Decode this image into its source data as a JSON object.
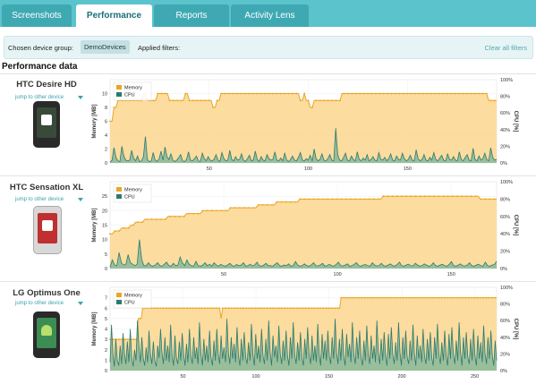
{
  "tabs": [
    {
      "label": "Screenshots",
      "active": false
    },
    {
      "label": "Performance",
      "active": true
    },
    {
      "label": "Reports",
      "active": false
    },
    {
      "label": "Activity Lens",
      "active": false
    }
  ],
  "filters": {
    "device_group_label": "Chosen device group:",
    "device_group_value": "DemoDevices",
    "applied_label": "Applied filters:",
    "clear_label": "Clear all filters"
  },
  "heading": "Performance data",
  "jump_label": "jump to other device",
  "colors": {
    "memory_fill": "#fbd68e",
    "memory_line": "#e9a524",
    "cpu_fill": "#7fb69a",
    "cpu_line": "#2c7a6e",
    "accent": "#5bc3cc"
  },
  "devices": [
    {
      "name": "HTC Desire HD",
      "phone_color": "#2a2a2a",
      "screen_color": "#3a4a3a",
      "screen_icon": "clock-widget"
    },
    {
      "name": "HTC Sensation XL",
      "phone_color": "white",
      "screen_color": "#c03030",
      "screen_icon": "clock-widget"
    },
    {
      "name": "LG Optimus One",
      "phone_color": "#2a2a2a",
      "screen_color": "#3b8d54",
      "screen_icon": "android-logo"
    }
  ],
  "chart_data": [
    {
      "type": "area",
      "legend": [
        "Memory",
        "CPU"
      ],
      "ylabel_left": "Memory [MB]",
      "ylabel_right": "CPU [%]",
      "ylim_left": [
        0,
        12
      ],
      "ylim_right": [
        0,
        100
      ],
      "yticks_left": [
        0,
        2,
        4,
        6,
        8,
        10
      ],
      "yticks_right": [
        "0%",
        "20%",
        "40%",
        "60%",
        "80%",
        "100%"
      ],
      "xlim": [
        0,
        195
      ],
      "xticks": [
        50,
        100,
        150
      ],
      "grid": true,
      "legend_position": "top-left",
      "memory": [
        6,
        6,
        8,
        8,
        9,
        9,
        9,
        9,
        9,
        9,
        9,
        9,
        9,
        9,
        9,
        9,
        9,
        10,
        10,
        9,
        9,
        9,
        9,
        9,
        10,
        10,
        10,
        10,
        10,
        10,
        9,
        9,
        9,
        9,
        9,
        9,
        9,
        9,
        10,
        10,
        9,
        9,
        9,
        9,
        9,
        9,
        9,
        9,
        9,
        9,
        9,
        9,
        8,
        8,
        9,
        9,
        10,
        10,
        10,
        10,
        10,
        10,
        10,
        10,
        10,
        10,
        10,
        10,
        10,
        10,
        10,
        10,
        10,
        10,
        10,
        10,
        10,
        10,
        10,
        10,
        10,
        10,
        10,
        10,
        10,
        10,
        10,
        10,
        10,
        10,
        10,
        10,
        10,
        10,
        10,
        10,
        9,
        9,
        10,
        9,
        9,
        8,
        8,
        9,
        9,
        9,
        9,
        9,
        9,
        9,
        9,
        9,
        9,
        9,
        9,
        9,
        9,
        10,
        10,
        10,
        10,
        10,
        10,
        10,
        10,
        10,
        10,
        10,
        10,
        10,
        10,
        10,
        10,
        10,
        10,
        10,
        10,
        10,
        10,
        10,
        10,
        10,
        10,
        10,
        10,
        10,
        10,
        10,
        10,
        10,
        10,
        10,
        10,
        10,
        10,
        10,
        10,
        10,
        10,
        10,
        10,
        10,
        10,
        10,
        10,
        10,
        10,
        10,
        10,
        10,
        10,
        10,
        10,
        10,
        10,
        10,
        10,
        10,
        10,
        10,
        10,
        10,
        10,
        10,
        10,
        10,
        10,
        10,
        10,
        10,
        10,
        9,
        9,
        9,
        9,
        9
      ],
      "cpu": [
        0.1,
        0.4,
        2.2,
        0.8,
        0.3,
        0.2,
        2.4,
        1.0,
        0.4,
        0.3,
        0.4,
        1.8,
        0.7,
        0.3,
        1.0,
        0.2,
        0.3,
        0.9,
        3.8,
        0.5,
        0.2,
        0.3,
        1.5,
        0.4,
        0.2,
        0.6,
        1.7,
        0.4,
        2.3,
        0.9,
        0.5,
        1.3,
        0.4,
        0.2,
        0.4,
        0.8,
        1.2,
        0.3,
        0.2,
        0.5,
        1.6,
        0.4,
        0.3,
        0.6,
        1.0,
        0.3,
        0.2,
        1.4,
        0.6,
        0.3,
        0.9,
        0.4,
        0.3,
        0.5,
        1.2,
        0.4,
        0.2,
        1.5,
        0.6,
        0.3,
        0.4,
        1.8,
        0.5,
        0.3,
        0.9,
        0.4,
        0.5,
        1.3,
        0.4,
        0.2,
        0.6,
        1.1,
        0.3,
        0.4,
        1.7,
        0.5,
        0.2,
        0.9,
        0.4,
        0.3,
        1.2,
        0.6,
        0.4,
        0.5,
        1.6,
        0.4,
        0.3,
        0.7,
        0.3,
        1.4,
        0.4,
        0.2,
        0.5,
        1.0,
        0.4,
        0.3,
        0.8,
        1.5,
        0.4,
        0.3,
        0.6,
        0.4,
        1.1,
        0.3,
        2.0,
        0.6,
        0.3,
        0.5,
        1.3,
        0.4,
        0.3,
        0.6,
        1.2,
        0.4,
        0.3,
        5.0,
        1.2,
        0.4,
        0.3,
        0.8,
        1.4,
        0.4,
        0.3,
        1.0,
        0.5,
        0.3,
        1.6,
        0.5,
        0.3,
        0.7,
        0.4,
        1.2,
        0.3,
        0.5,
        0.9,
        0.4,
        0.3,
        1.5,
        0.5,
        0.4,
        0.8,
        0.3,
        0.6,
        1.3,
        0.4,
        0.3,
        1.0,
        0.5,
        0.4,
        1.4,
        0.6,
        0.3,
        0.5,
        1.1,
        0.4,
        0.3,
        1.9,
        0.6,
        0.3,
        0.5,
        1.2,
        0.4,
        0.3,
        0.8,
        0.4,
        1.5,
        0.5,
        0.3,
        0.7,
        1.1,
        0.4,
        0.3,
        1.3,
        0.5,
        0.4,
        0.9,
        0.4,
        0.3,
        1.6,
        0.5,
        0.3,
        0.8,
        1.2,
        0.4,
        0.3,
        2.1,
        0.5,
        0.3,
        1.0,
        0.4,
        0.6,
        1.4,
        0.5,
        0.3,
        2.2,
        0.8,
        0.4,
        0.5
      ]
    },
    {
      "type": "area",
      "legend": [
        "Memory",
        "CPU"
      ],
      "ylabel_left": "Memory [MB]",
      "ylabel_right": "CPU [%]",
      "ylim_left": [
        0,
        30
      ],
      "ylim_right": [
        0,
        100
      ],
      "yticks_left": [
        0,
        5,
        10,
        15,
        20,
        25
      ],
      "yticks_right": [
        "0%",
        "20%",
        "40%",
        "60%",
        "80%",
        "100%"
      ],
      "xlim": [
        0,
        170
      ],
      "xticks": [
        50,
        100,
        150
      ],
      "grid": true,
      "legend_position": "top-left",
      "memory": [
        12,
        12,
        13,
        13,
        13,
        14,
        14,
        14,
        14,
        15,
        15,
        16,
        16,
        16,
        16,
        17,
        17,
        17,
        17,
        17,
        17,
        17,
        17,
        17,
        17,
        18,
        18,
        18,
        18,
        18,
        18,
        18,
        18,
        19,
        19,
        19,
        19,
        19,
        19,
        19,
        20,
        20,
        20,
        20,
        20,
        20,
        20,
        20,
        20,
        20,
        20,
        20,
        21,
        21,
        21,
        21,
        21,
        21,
        21,
        21,
        21,
        21,
        21,
        21,
        22,
        22,
        22,
        22,
        22,
        22,
        22,
        22,
        23,
        23,
        23,
        23,
        23,
        23,
        23,
        23,
        23,
        23,
        24,
        24,
        24,
        24,
        24,
        24,
        24,
        24,
        24,
        24,
        24,
        24,
        24,
        24,
        24,
        24,
        24,
        24,
        24,
        24,
        24,
        24,
        24,
        24,
        24,
        24,
        24,
        24,
        24,
        24,
        24,
        24,
        24,
        24,
        24,
        24,
        25,
        25,
        25,
        25,
        25,
        25,
        25,
        25,
        25,
        25,
        25,
        25,
        25,
        25,
        25,
        25,
        25,
        25,
        25,
        25,
        25,
        25,
        25,
        25,
        25,
        25,
        25,
        25,
        25,
        25,
        25,
        25,
        25,
        25,
        25,
        25,
        25,
        25,
        25,
        25,
        25,
        25,
        24,
        24,
        24,
        24,
        24,
        24,
        24,
        24
      ],
      "cpu": [
        0.5,
        3.0,
        1.2,
        1.0,
        5.5,
        2.0,
        1.2,
        1.5,
        4.8,
        2.0,
        1.5,
        1.0,
        1.5,
        10.0,
        3.0,
        1.0,
        1.0,
        2.0,
        1.0,
        0.8,
        1.2,
        2.0,
        1.0,
        0.8,
        1.5,
        2.2,
        1.0,
        0.8,
        1.8,
        1.0,
        1.2,
        4.0,
        2.0,
        1.0,
        3.0,
        1.5,
        1.0,
        0.8,
        2.5,
        1.0,
        0.8,
        1.2,
        2.0,
        1.0,
        1.5,
        0.8,
        2.0,
        1.2,
        0.8,
        1.5,
        1.0,
        0.8,
        1.2,
        1.8,
        1.0,
        0.8,
        1.4,
        1.0,
        1.2,
        2.0,
        0.8,
        1.0,
        1.5,
        0.9,
        1.2,
        2.2,
        1.0,
        0.8,
        1.2,
        1.8,
        1.0,
        1.0,
        0.8,
        1.5,
        2.0,
        1.0,
        0.8,
        1.2,
        1.0,
        1.6,
        0.8,
        1.0,
        2.4,
        1.2,
        0.8,
        1.0,
        1.6,
        1.0,
        0.8,
        1.2,
        2.0,
        1.0,
        0.9,
        1.2,
        1.8,
        0.8,
        1.0,
        1.5,
        1.0,
        0.8,
        1.4,
        2.2,
        1.0,
        0.9,
        1.2,
        1.6,
        0.8,
        1.0,
        1.5,
        2.0,
        1.0,
        0.8,
        1.2,
        1.4,
        1.0,
        0.8,
        2.0,
        1.2,
        0.9,
        1.0,
        1.8,
        1.0,
        0.8,
        1.2,
        1.6,
        1.0,
        0.8,
        1.4,
        2.2,
        1.0,
        0.8,
        1.2,
        1.5,
        1.0,
        0.9,
        1.8,
        1.2,
        0.8,
        1.0,
        1.6,
        1.2,
        0.8,
        1.0,
        2.0,
        1.0,
        0.8,
        1.2,
        1.5,
        1.0,
        0.8,
        1.4,
        2.4,
        1.0,
        0.8,
        1.2,
        1.6,
        1.0,
        0.9,
        1.2,
        2.0,
        1.0,
        0.8,
        1.2,
        1.5,
        1.0,
        0.8,
        2.2,
        1.0,
        0.8,
        1.2,
        1.4,
        2.5
      ]
    },
    {
      "type": "area",
      "legend": [
        "Memory",
        "CPU"
      ],
      "ylabel_left": "Memory [MB]",
      "ylabel_right": "CPU [%]",
      "ylim_left": [
        0,
        8
      ],
      "ylim_right": [
        0,
        100
      ],
      "yticks_left": [
        0,
        1,
        2,
        3,
        4,
        5,
        6,
        7
      ],
      "yticks_right": [
        "0%",
        "20%",
        "40%",
        "60%",
        "80%",
        "100%"
      ],
      "xlim": [
        0,
        265
      ],
      "xticks": [
        50,
        100,
        150,
        200,
        250
      ],
      "grid": true,
      "legend_position": "top-left",
      "memory": [
        3,
        3,
        3,
        3,
        3,
        3,
        3,
        3,
        3,
        3,
        3,
        3,
        3,
        3,
        3,
        3,
        3,
        3,
        3,
        5,
        5,
        5,
        6,
        6,
        6,
        6,
        6,
        6,
        6,
        6,
        6,
        6,
        6,
        6,
        6,
        6,
        6,
        6,
        6,
        6,
        6,
        6,
        6,
        6,
        6,
        6,
        6,
        6,
        6,
        6,
        6,
        6,
        6,
        6,
        6,
        6,
        6,
        6,
        6,
        6,
        6,
        6,
        6,
        6,
        6,
        6,
        6,
        6,
        6,
        6,
        6,
        6,
        6,
        6,
        6,
        5,
        6,
        6,
        6,
        6,
        6,
        6,
        6,
        6,
        6,
        6,
        6,
        6,
        6,
        6,
        6,
        6,
        6,
        6,
        6,
        6,
        6,
        6,
        6,
        6,
        6,
        6,
        6,
        6,
        6,
        6,
        6,
        6,
        6,
        6,
        6,
        6,
        6,
        6,
        6,
        6,
        6,
        6,
        6,
        6,
        6,
        6,
        6,
        6,
        6,
        6,
        6,
        6,
        6,
        6,
        6,
        6,
        6,
        6,
        6,
        6,
        6,
        6,
        6,
        6,
        6,
        6,
        6,
        6,
        6,
        6,
        6,
        6,
        6,
        6,
        6,
        6,
        6,
        6,
        6,
        6,
        7,
        7,
        7,
        7,
        7,
        7,
        7,
        7,
        7,
        7,
        7,
        7,
        7,
        7,
        7,
        7,
        7,
        7,
        7,
        7,
        7,
        7,
        7,
        7,
        7,
        7,
        7,
        7,
        7,
        7,
        7,
        7,
        7,
        7,
        7,
        7,
        7,
        7,
        7,
        7,
        7,
        7,
        7,
        7,
        7,
        7,
        7,
        7,
        7,
        7,
        7,
        7,
        7,
        7,
        7,
        7,
        7,
        7,
        7,
        7,
        7,
        7,
        7,
        7,
        7,
        7,
        7,
        7,
        7,
        7,
        7,
        7,
        7,
        7,
        7,
        7,
        7,
        7,
        7,
        7,
        7,
        7,
        7,
        7,
        7,
        7,
        7,
        7,
        7,
        7,
        7,
        7,
        7,
        7,
        7,
        7,
        7,
        7,
        7,
        7,
        7,
        7,
        7,
        7,
        7,
        7
      ],
      "cpu": [
        10,
        55,
        20,
        5,
        38,
        12,
        6,
        30,
        8,
        45,
        20,
        8,
        35,
        10,
        50,
        15,
        5,
        25,
        12,
        60,
        30,
        10,
        40,
        15,
        6,
        28,
        10,
        48,
        20,
        8,
        35,
        12,
        5,
        30,
        15,
        50,
        22,
        8,
        40,
        12,
        30,
        10,
        55,
        18,
        6,
        42,
        15,
        8,
        35,
        12,
        45,
        20,
        6,
        32,
        10,
        50,
        18,
        8,
        40,
        14,
        28,
        8,
        58,
        20,
        6,
        38,
        12,
        30,
        10,
        48,
        16,
        6,
        36,
        12,
        50,
        20,
        8,
        42,
        14,
        28,
        10,
        62,
        22,
        8,
        40,
        14,
        32,
        10,
        52,
        18,
        6,
        38,
        12,
        46,
        16,
        8,
        34,
        12,
        56,
        20,
        6,
        44,
        14,
        30,
        10,
        50,
        18,
        8,
        38,
        12,
        60,
        22,
        6,
        42,
        16,
        30,
        10,
        54,
        20,
        8,
        36,
        12,
        48,
        18,
        6,
        40,
        14,
        58,
        20,
        8,
        34,
        12,
        46,
        16,
        6,
        38,
        14,
        52,
        20,
        8,
        42,
        12,
        30,
        10,
        56,
        20,
        6,
        44,
        14,
        36,
        12,
        48,
        18,
        8,
        40,
        14,
        62,
        22,
        8,
        38,
        12,
        50,
        18,
        6,
        44,
        16,
        32,
        10,
        58,
        20,
        8,
        40,
        14,
        48,
        16,
        6,
        36,
        12,
        54,
        20,
        8,
        42,
        14,
        30,
        10,
        60,
        22,
        8,
        38,
        12,
        46,
        18,
        6,
        44,
        14,
        52,
        20,
        8,
        34,
        12,
        58,
        22,
        6,
        40,
        14,
        48,
        16,
        8,
        36,
        12,
        55,
        20,
        6,
        42,
        14,
        30,
        10,
        50,
        18,
        8,
        38,
        12,
        46,
        16,
        6,
        40,
        14,
        56,
        20,
        8,
        34,
        12,
        48,
        18,
        6,
        44,
        14,
        52,
        20,
        8,
        36,
        12,
        58,
        22,
        6,
        40,
        14,
        46,
        16,
        8,
        38,
        12,
        50,
        18,
        6,
        42,
        14,
        34,
        10,
        54,
        20,
        8,
        40,
        14,
        48,
        18,
        6,
        36,
        12
      ]
    }
  ]
}
